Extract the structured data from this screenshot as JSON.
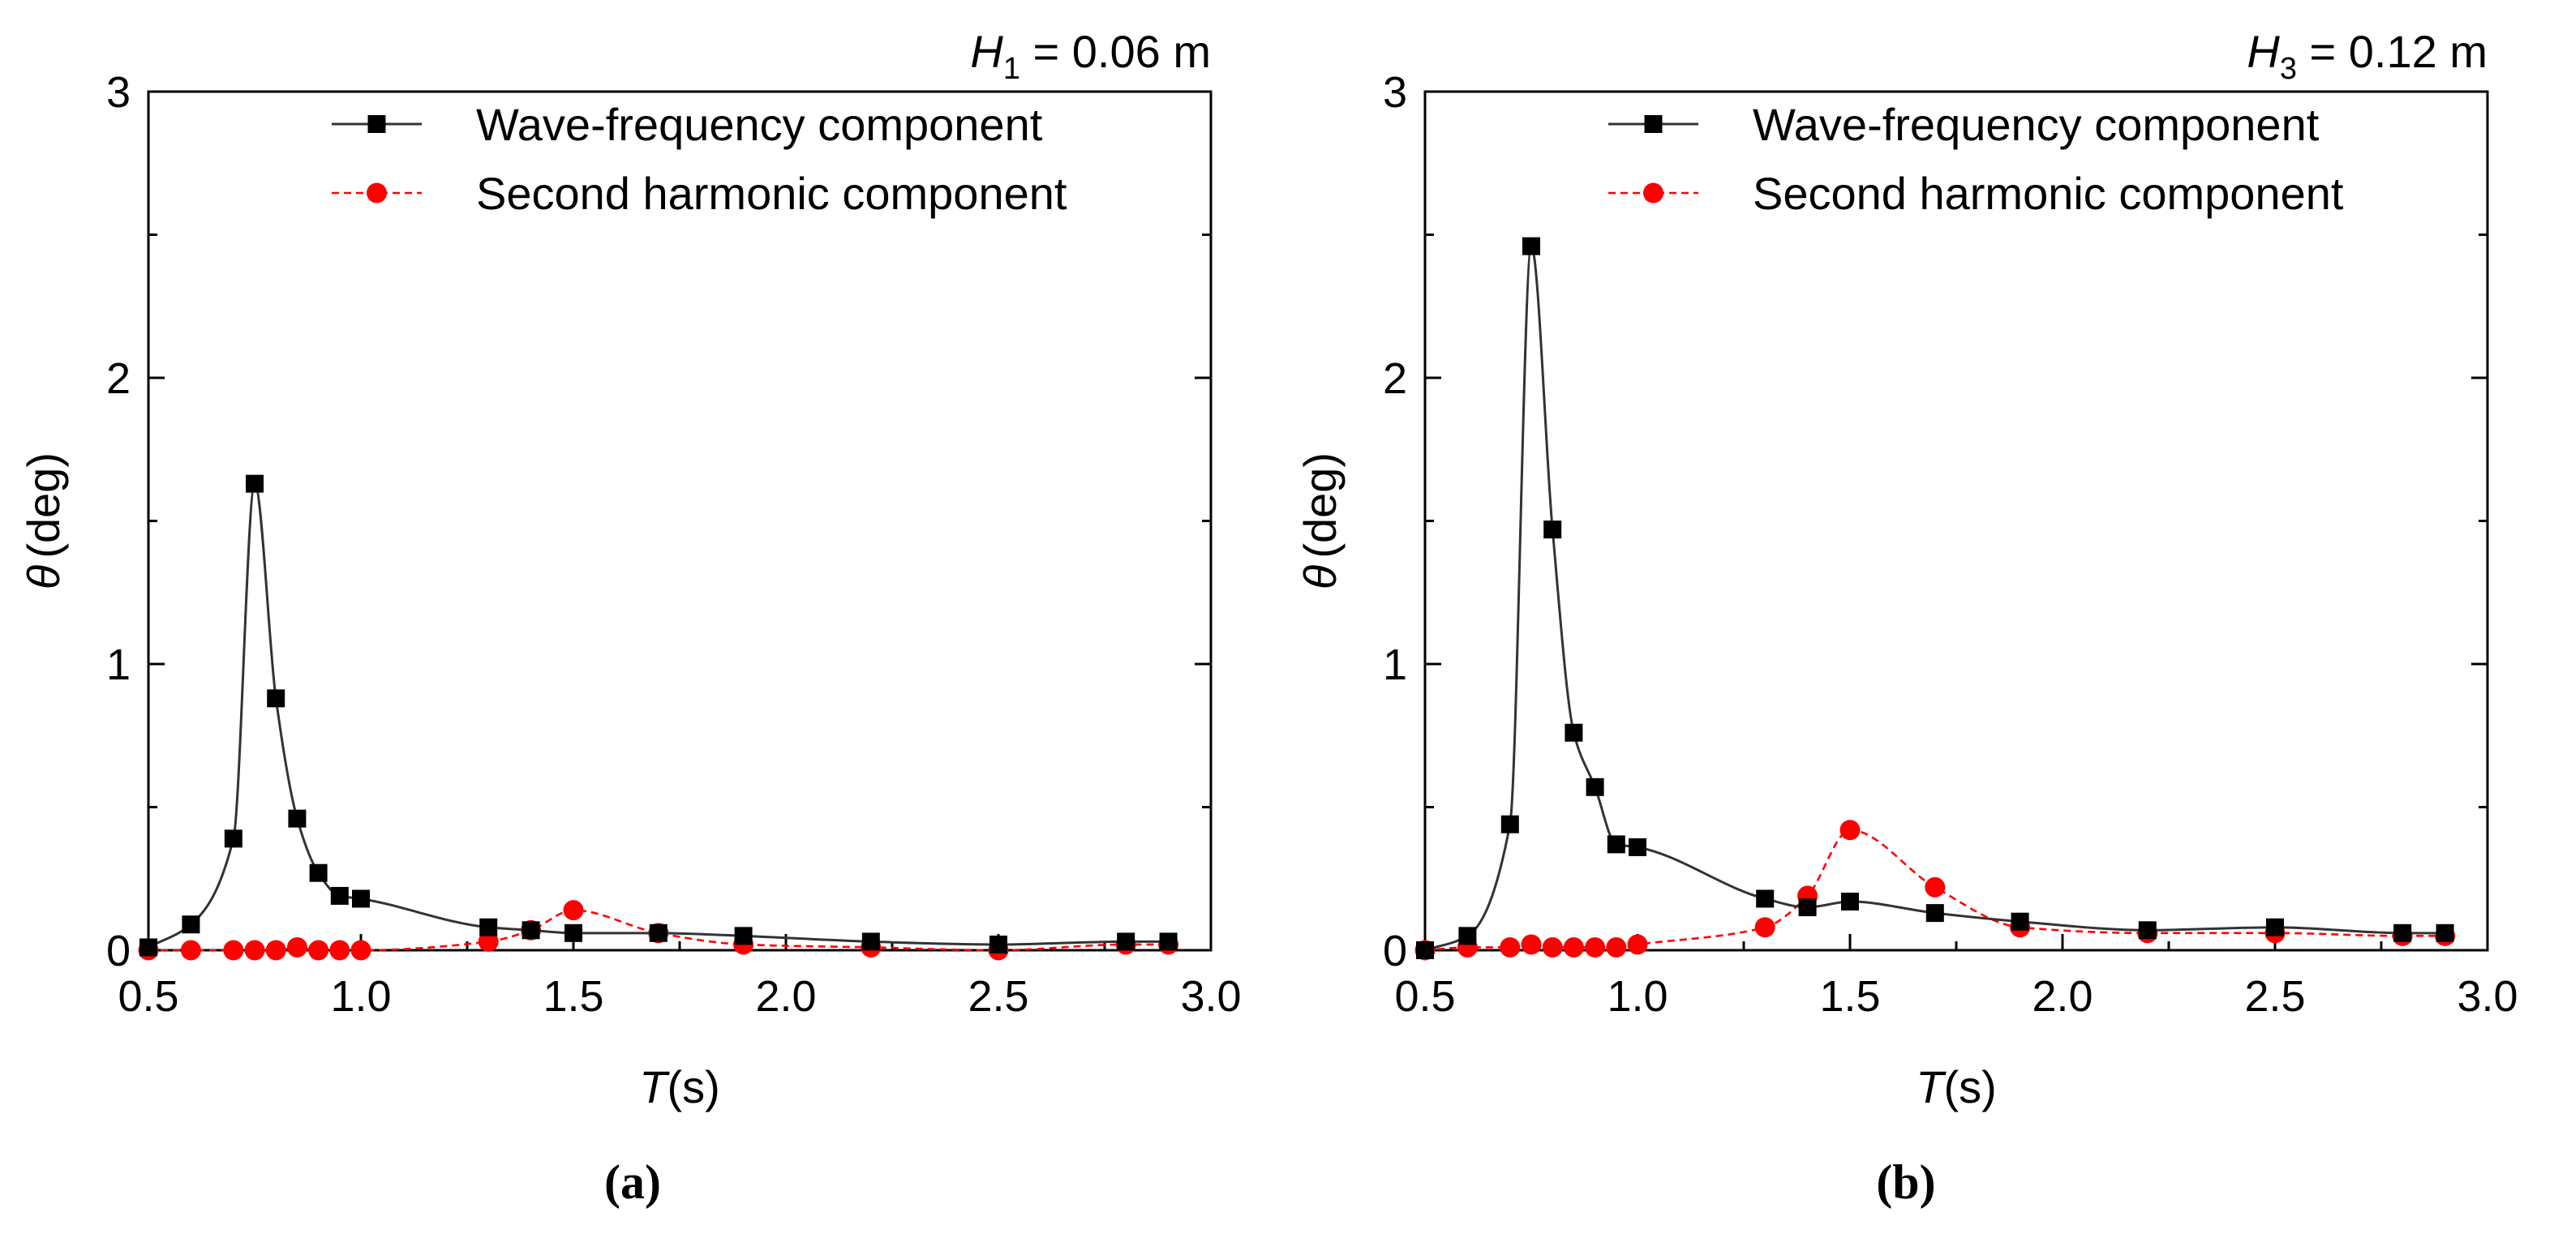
{
  "colors": {
    "wave_line": "#333333",
    "wave_marker": "#000000",
    "harmonic": "#ff0000",
    "axis": "#000000"
  },
  "chart_data": [
    {
      "type": "line",
      "caption": "(a)",
      "annotation": {
        "var": "H",
        "sub": "1",
        "rest": " = 0.06 m"
      },
      "xlabel": {
        "var": "T",
        "unit": "(s)"
      },
      "ylabel": {
        "var": "θ",
        "unit": "(deg)"
      },
      "xlim": [
        0.5,
        3.0
      ],
      "ylim": [
        0,
        3
      ],
      "xticks": [
        "0.5",
        "1.0",
        "1.5",
        "2.0",
        "2.5",
        "3.0"
      ],
      "yticks": [
        "0",
        "1",
        "2",
        "3"
      ],
      "legend_position": "top-right",
      "series": [
        {
          "name": "Wave-frequency component",
          "style": "solid",
          "marker": "square",
          "x": [
            0.5,
            0.6,
            0.7,
            0.75,
            0.8,
            0.85,
            0.9,
            0.95,
            1.0,
            1.3,
            1.4,
            1.5,
            1.7,
            1.9,
            2.2,
            2.5,
            2.8,
            2.9
          ],
          "y": [
            0.01,
            0.09,
            0.39,
            1.63,
            0.88,
            0.46,
            0.27,
            0.19,
            0.18,
            0.08,
            0.07,
            0.06,
            0.06,
            0.05,
            0.03,
            0.02,
            0.03,
            0.03
          ]
        },
        {
          "name": "Second harmonic component",
          "style": "dashed",
          "marker": "circle",
          "x": [
            0.5,
            0.6,
            0.7,
            0.75,
            0.8,
            0.85,
            0.9,
            0.95,
            1.0,
            1.3,
            1.4,
            1.5,
            1.7,
            1.9,
            2.2,
            2.5,
            2.8,
            2.9
          ],
          "y": [
            0.0,
            0.0,
            0.0,
            0.0,
            0.0,
            0.01,
            0.0,
            0.0,
            0.0,
            0.03,
            0.07,
            0.14,
            0.06,
            0.02,
            0.01,
            0.0,
            0.02,
            0.02
          ]
        }
      ]
    },
    {
      "type": "line",
      "caption": "(b)",
      "annotation": {
        "var": "H",
        "sub": "3",
        "rest": " = 0.12 m"
      },
      "xlabel": {
        "var": "T",
        "unit": "(s)"
      },
      "ylabel": {
        "var": "θ",
        "unit": "(deg)"
      },
      "xlim": [
        0.5,
        3.0
      ],
      "ylim": [
        0,
        3
      ],
      "xticks": [
        "0.5",
        "1.0",
        "1.5",
        "2.0",
        "2.5",
        "3.0"
      ],
      "yticks": [
        "0",
        "1",
        "2",
        "3"
      ],
      "legend_position": "top-right",
      "series": [
        {
          "name": "Wave-frequency component",
          "style": "solid",
          "marker": "square",
          "x": [
            0.5,
            0.6,
            0.7,
            0.75,
            0.8,
            0.85,
            0.9,
            0.95,
            1.0,
            1.3,
            1.4,
            1.5,
            1.7,
            1.9,
            2.2,
            2.5,
            2.8,
            2.9
          ],
          "y": [
            0.0,
            0.05,
            0.44,
            2.46,
            1.47,
            0.76,
            0.57,
            0.37,
            0.36,
            0.18,
            0.15,
            0.17,
            0.13,
            0.1,
            0.07,
            0.08,
            0.06,
            0.06
          ]
        },
        {
          "name": "Second harmonic component",
          "style": "dashed",
          "marker": "circle",
          "x": [
            0.5,
            0.6,
            0.7,
            0.75,
            0.8,
            0.85,
            0.9,
            0.95,
            1.0,
            1.3,
            1.4,
            1.5,
            1.7,
            1.9,
            2.2,
            2.5,
            2.8,
            2.9
          ],
          "y": [
            0.0,
            0.01,
            0.01,
            0.02,
            0.01,
            0.01,
            0.01,
            0.01,
            0.02,
            0.08,
            0.19,
            0.42,
            0.22,
            0.08,
            0.06,
            0.06,
            0.05,
            0.05
          ]
        }
      ]
    }
  ]
}
